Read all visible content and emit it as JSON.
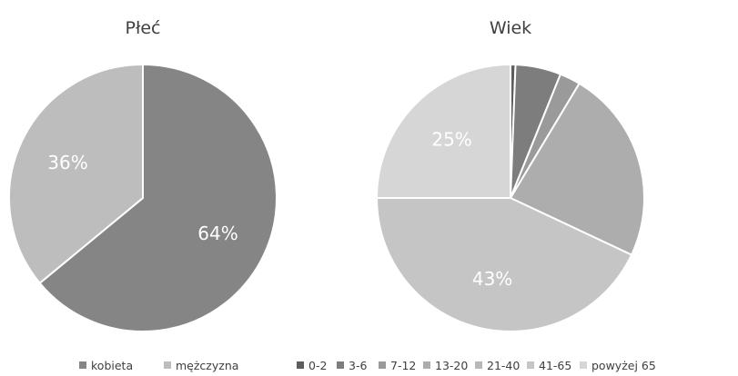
{
  "chart_data": [
    {
      "type": "pie",
      "title": "Płeć",
      "categories": [
        "kobieta",
        "mężczyzna"
      ],
      "values": [
        64,
        36
      ],
      "data_labels": [
        "64%",
        "36%"
      ],
      "colors": [
        "#858585",
        "#bdbdbd"
      ],
      "legend_placement": "bottom"
    },
    {
      "type": "pie",
      "title": "Wiek",
      "categories": [
        "0-2",
        "3-6",
        "7-12",
        "13-20",
        "21-40",
        "41-65",
        "powyżej 65"
      ],
      "values": [
        0.6,
        5.5,
        2.5,
        23.4,
        0,
        43,
        25
      ],
      "data_labels": [
        "",
        "",
        "",
        "",
        "",
        "43%",
        "25%"
      ],
      "colors": [
        "#5e5e5e",
        "#7d7d7d",
        "#9a9a9a",
        "#adadad",
        "#b8b8b8",
        "#c5c5c5",
        "#d6d6d6"
      ],
      "legend_placement": "bottom"
    }
  ]
}
